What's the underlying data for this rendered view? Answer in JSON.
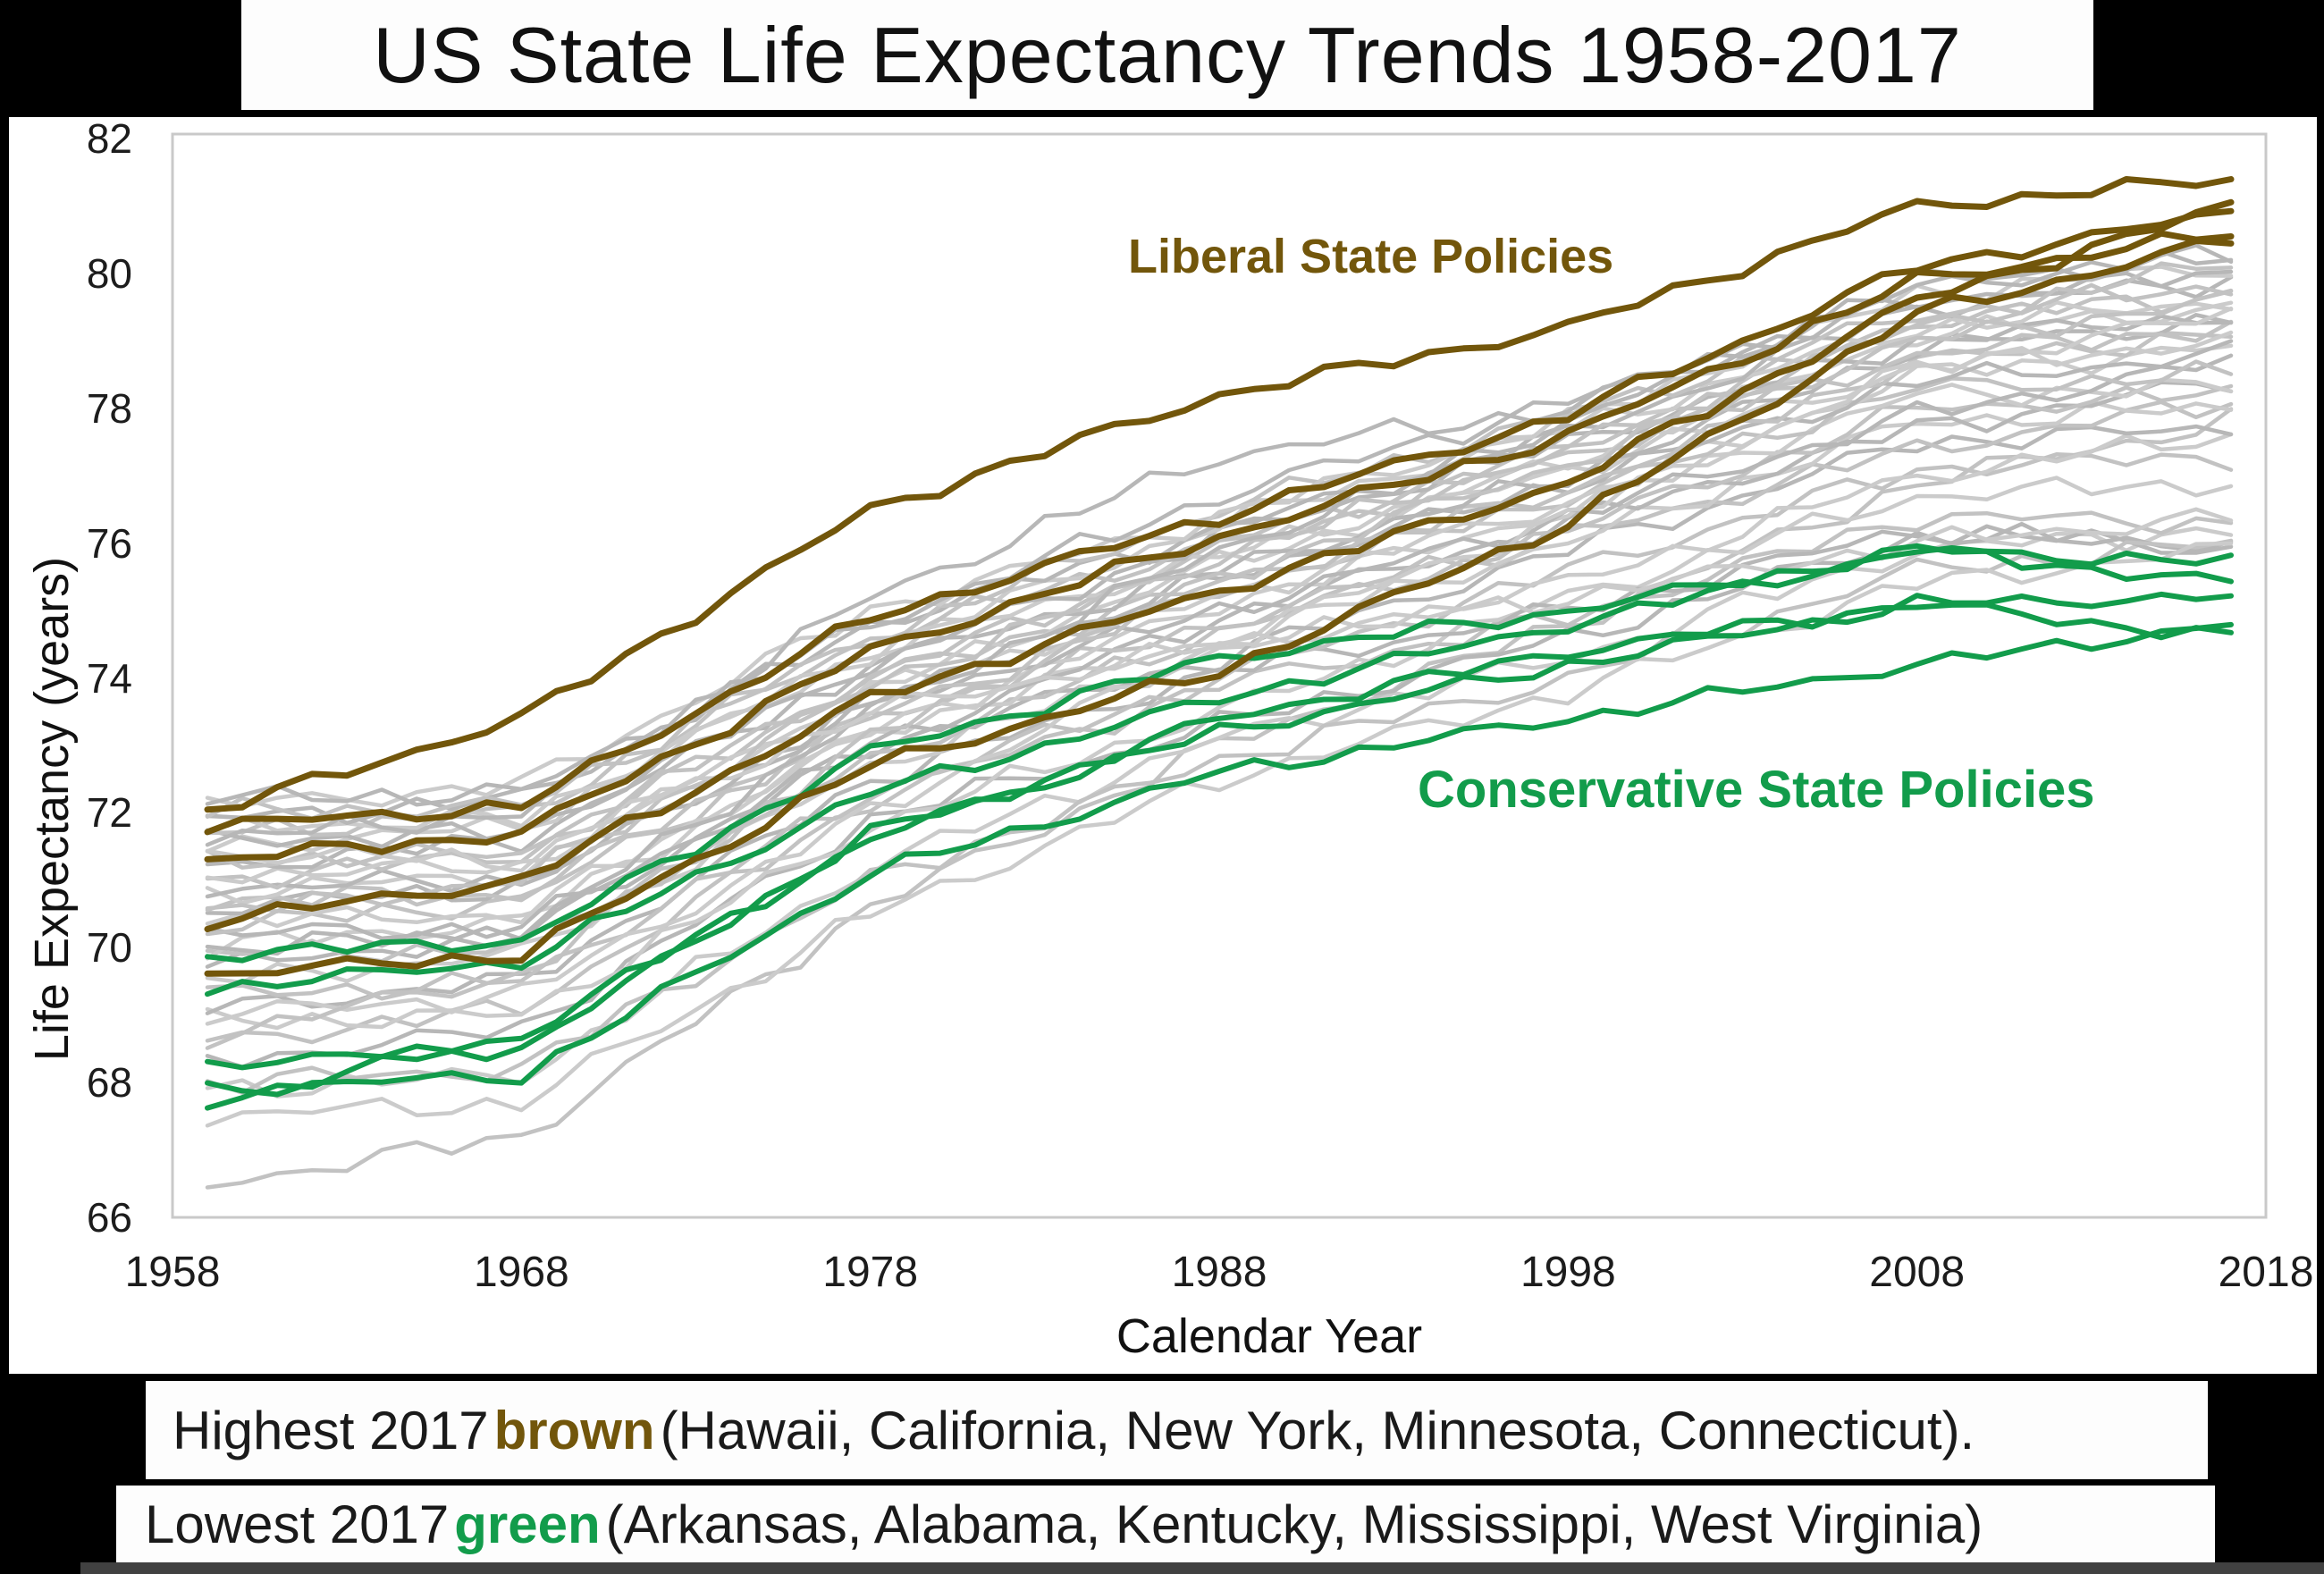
{
  "title": "US State Life Expectancy Trends 1958-2017",
  "axes": {
    "y_title": "Life Expectancy (years)",
    "x_title": "Calendar Year",
    "y_ticks": [
      82,
      80,
      78,
      76,
      74,
      72,
      70,
      68,
      66
    ],
    "x_ticks": [
      1958,
      1968,
      1978,
      1988,
      1998,
      2008,
      2018
    ]
  },
  "annotations": {
    "liberal": "Liberal State Policies",
    "conservative": "Conservative State Policies"
  },
  "captions": {
    "highest": {
      "prefix": "Highest 2017",
      "word": "brown",
      "suffix": "(Hawaii, California, New York, Minnesota, Connecticut)."
    },
    "lowest": {
      "prefix": "Lowest 2017",
      "word": "green",
      "suffix": "(Arkansas, Alabama, Kentucky, Mississippi, West Virginia)"
    }
  },
  "colors": {
    "background": "#000000",
    "panel": "#ffffff",
    "plot_border": "#c9c9c9",
    "brown": "#72560b",
    "green": "#129c4b",
    "grays": [
      "#b7b7b7",
      "#c2c2c2",
      "#cbcbcb"
    ],
    "bottom_bar": "#414141",
    "text": "#1a1a1a"
  },
  "chart_data": {
    "type": "line",
    "title": "US State Life Expectancy Trends 1958-2017",
    "xlabel": "Calendar Year",
    "ylabel": "Life Expectancy (years)",
    "xlim": [
      1958,
      2018
    ],
    "ylim": [
      66,
      82
    ],
    "grid": false,
    "legend": "in-plot text annotations",
    "anchor_years": [
      1959,
      1968,
      1978,
      1988,
      1998,
      2008,
      2017
    ],
    "series": [
      {
        "name": "Hawaii",
        "group": "brown",
        "values": [
          72.0,
          73.4,
          76.5,
          78.2,
          79.2,
          81.0,
          81.4
        ]
      },
      {
        "name": "Minnesota",
        "group": "brown",
        "values": [
          71.8,
          72.1,
          74.9,
          76.4,
          77.9,
          80.1,
          80.9
        ]
      },
      {
        "name": "Connecticut",
        "group": "brown",
        "values": [
          71.3,
          71.7,
          74.4,
          76.1,
          77.6,
          79.9,
          80.6
        ]
      },
      {
        "name": "California",
        "group": "brown",
        "values": [
          70.4,
          71.0,
          73.7,
          75.3,
          76.9,
          79.6,
          81.0
        ]
      },
      {
        "name": "New York",
        "group": "brown",
        "values": [
          69.6,
          69.9,
          72.7,
          74.1,
          76.3,
          79.4,
          80.5
        ]
      },
      {
        "name": "Arkansas",
        "group": "green",
        "values": [
          69.9,
          70.1,
          72.9,
          74.3,
          75.0,
          75.9,
          75.7
        ]
      },
      {
        "name": "Kentucky",
        "group": "green",
        "values": [
          69.4,
          69.8,
          72.3,
          73.7,
          74.8,
          75.9,
          75.4
        ]
      },
      {
        "name": "Alabama",
        "group": "green",
        "values": [
          68.3,
          68.5,
          71.7,
          73.2,
          74.2,
          75.1,
          75.2
        ]
      },
      {
        "name": "West Virginia",
        "group": "green",
        "values": [
          67.7,
          68.7,
          71.6,
          73.4,
          74.4,
          75.1,
          74.6
        ]
      },
      {
        "name": "Mississippi",
        "group": "green",
        "values": [
          67.9,
          68.1,
          71.1,
          72.6,
          73.4,
          74.2,
          74.8
        ]
      },
      {
        "name": "",
        "group": "gray",
        "values": [
          66.5,
          67.2,
          70.6,
          73.0,
          74.8,
          76.9,
          77.8
        ]
      },
      {
        "name": "",
        "group": "gray",
        "values": [
          67.9,
          68.1,
          71.2,
          73.1,
          74.3,
          75.9,
          76.2
        ]
      },
      {
        "name": "",
        "group": "gray",
        "values": [
          68.3,
          68.8,
          71.9,
          73.3,
          74.6,
          76.1,
          76.0
        ]
      },
      {
        "name": "",
        "group": "gray",
        "values": [
          68.6,
          69.1,
          72.2,
          73.9,
          74.9,
          76.4,
          76.3
        ]
      },
      {
        "name": "",
        "group": "gray",
        "values": [
          68.9,
          69.0,
          71.8,
          73.5,
          75.2,
          76.7,
          76.9
        ]
      },
      {
        "name": "",
        "group": "gray",
        "values": [
          69.1,
          69.5,
          72.5,
          74.1,
          75.0,
          76.2,
          75.9
        ]
      },
      {
        "name": "",
        "group": "gray",
        "values": [
          69.3,
          69.5,
          72.3,
          74.0,
          75.6,
          77.1,
          77.3
        ]
      },
      {
        "name": "",
        "group": "gray",
        "values": [
          69.5,
          69.9,
          72.7,
          74.4,
          75.4,
          77.0,
          77.6
        ]
      },
      {
        "name": "",
        "group": "gray",
        "values": [
          69.7,
          70.2,
          73.0,
          74.3,
          75.9,
          77.5,
          77.7
        ]
      },
      {
        "name": "",
        "group": "gray",
        "values": [
          69.9,
          70.0,
          72.8,
          74.7,
          76.1,
          77.4,
          78.1
        ]
      },
      {
        "name": "",
        "group": "gray",
        "values": [
          70.0,
          70.4,
          73.2,
          74.6,
          76.0,
          77.8,
          78.0
        ]
      },
      {
        "name": "",
        "group": "gray",
        "values": [
          70.2,
          70.3,
          73.0,
          74.9,
          76.3,
          77.7,
          78.4
        ]
      },
      {
        "name": "",
        "group": "gray",
        "values": [
          70.3,
          70.7,
          73.4,
          74.8,
          76.2,
          78.0,
          78.2
        ]
      },
      {
        "name": "",
        "group": "gray",
        "values": [
          70.4,
          70.5,
          73.2,
          75.1,
          76.5,
          78.2,
          78.3
        ]
      },
      {
        "name": "",
        "group": "gray",
        "values": [
          70.6,
          70.9,
          73.6,
          75.0,
          76.4,
          77.9,
          78.7
        ]
      },
      {
        "name": "",
        "group": "gray",
        "values": [
          70.7,
          70.8,
          73.4,
          75.3,
          76.7,
          78.3,
          78.5
        ]
      },
      {
        "name": "",
        "group": "gray",
        "values": [
          70.8,
          71.1,
          73.8,
          75.2,
          76.6,
          78.5,
          78.9
        ]
      },
      {
        "name": "",
        "group": "gray",
        "values": [
          70.9,
          71.0,
          73.6,
          75.5,
          76.9,
          78.4,
          78.8
        ]
      },
      {
        "name": "",
        "group": "gray",
        "values": [
          71.0,
          71.4,
          74.0,
          75.4,
          76.8,
          78.7,
          79.1
        ]
      },
      {
        "name": "",
        "group": "gray",
        "values": [
          71.1,
          71.2,
          73.8,
          75.7,
          77.1,
          78.6,
          79.0
        ]
      },
      {
        "name": "",
        "group": "gray",
        "values": [
          71.2,
          71.6,
          74.2,
          75.6,
          77.0,
          78.9,
          79.3
        ]
      },
      {
        "name": "",
        "group": "gray",
        "values": [
          71.3,
          71.4,
          74.0,
          75.9,
          77.3,
          78.8,
          79.2
        ]
      },
      {
        "name": "",
        "group": "gray",
        "values": [
          71.5,
          71.8,
          74.4,
          75.8,
          77.2,
          79.1,
          79.5
        ]
      },
      {
        "name": "",
        "group": "gray",
        "values": [
          71.6,
          71.7,
          74.2,
          76.1,
          77.5,
          79.0,
          79.4
        ]
      },
      {
        "name": "",
        "group": "gray",
        "values": [
          71.7,
          72.0,
          74.6,
          76.0,
          77.4,
          79.3,
          79.7
        ]
      },
      {
        "name": "",
        "group": "gray",
        "values": [
          71.8,
          71.9,
          74.4,
          76.3,
          77.7,
          79.2,
          79.6
        ]
      },
      {
        "name": "",
        "group": "gray",
        "values": [
          71.9,
          72.2,
          74.8,
          76.2,
          77.6,
          79.5,
          79.9
        ]
      },
      {
        "name": "",
        "group": "gray",
        "values": [
          72.0,
          72.1,
          74.6,
          76.5,
          77.9,
          79.4,
          79.8
        ]
      },
      {
        "name": "",
        "group": "gray",
        "values": [
          72.1,
          72.4,
          75.0,
          76.4,
          77.8,
          79.7,
          80.1
        ]
      },
      {
        "name": "",
        "group": "gray",
        "values": [
          72.2,
          72.3,
          74.8,
          76.7,
          78.1,
          79.6,
          80.0
        ]
      },
      {
        "name": "",
        "group": "gray",
        "values": [
          70.5,
          71.0,
          73.9,
          75.8,
          77.4,
          79.2,
          80.2
        ]
      },
      {
        "name": "",
        "group": "gray",
        "values": [
          69.0,
          69.3,
          72.0,
          74.5,
          76.4,
          78.6,
          79.4
        ]
      },
      {
        "name": "",
        "group": "gray",
        "values": [
          71.6,
          72.0,
          75.2,
          77.3,
          78.0,
          79.8,
          80.3
        ]
      },
      {
        "name": "",
        "group": "gray",
        "values": [
          68.0,
          68.2,
          71.0,
          72.8,
          74.0,
          75.6,
          76.0
        ]
      },
      {
        "name": "",
        "group": "gray",
        "values": [
          67.5,
          67.7,
          70.5,
          72.5,
          73.8,
          75.4,
          75.9
        ]
      },
      {
        "name": "",
        "group": "gray",
        "values": [
          70.0,
          70.2,
          73.5,
          75.9,
          77.8,
          79.9,
          80.2
        ]
      },
      {
        "name": "",
        "group": "gray",
        "values": [
          68.7,
          69.6,
          73.1,
          75.5,
          77.2,
          79.0,
          79.6
        ]
      },
      {
        "name": "",
        "group": "gray",
        "values": [
          71.4,
          71.3,
          73.5,
          74.5,
          75.2,
          76.0,
          76.4
        ]
      }
    ]
  }
}
